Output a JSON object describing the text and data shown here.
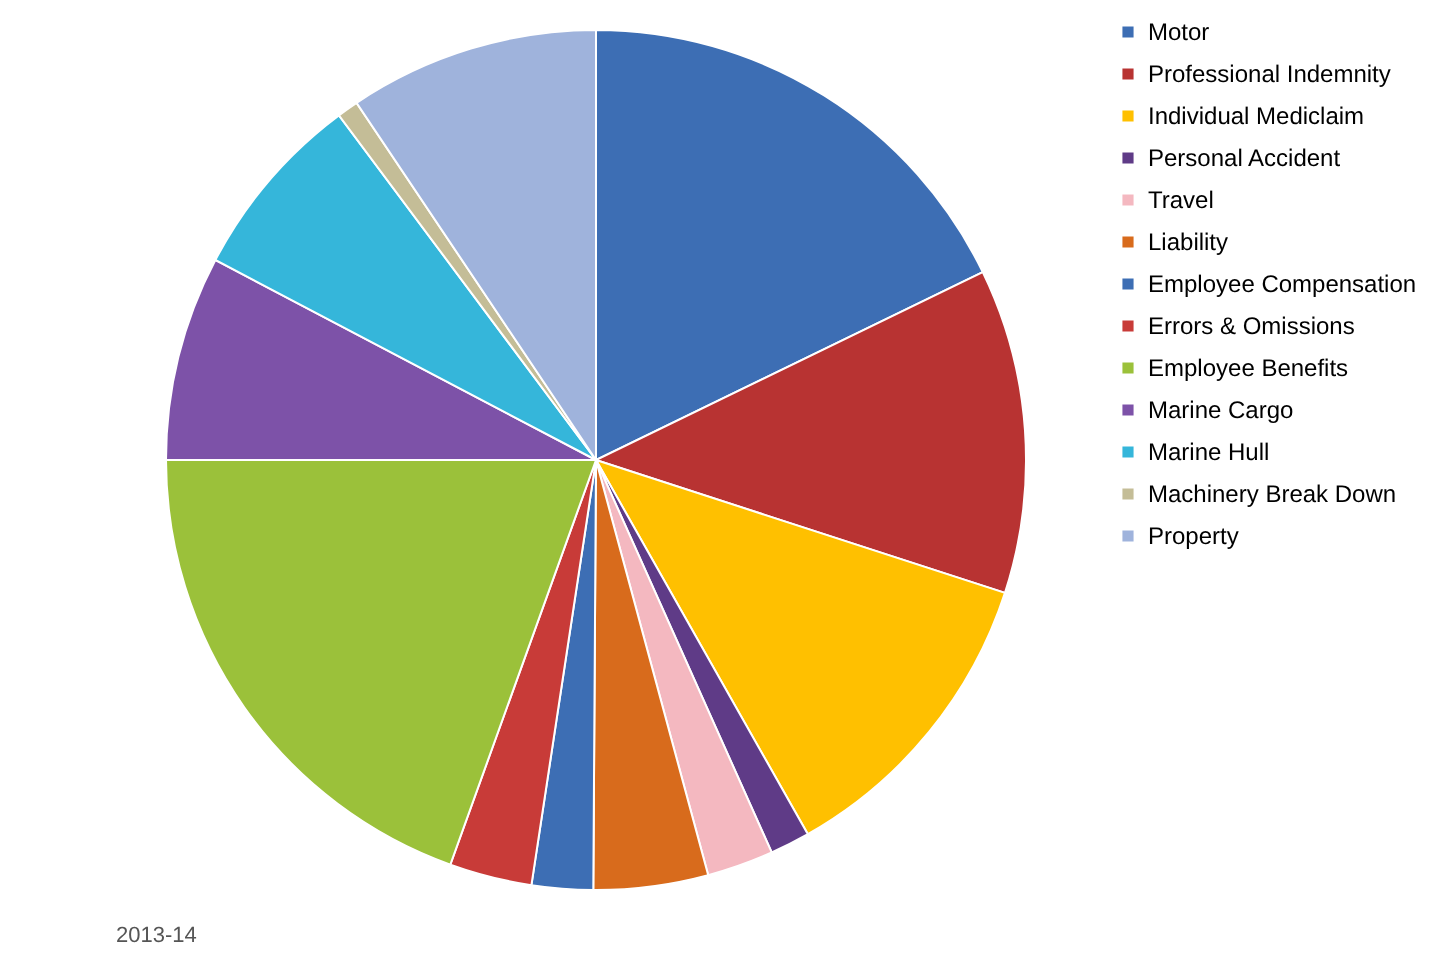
{
  "chart_data": {
    "type": "pie",
    "categories": [
      "Motor",
      "Professional Indemnity",
      "Individual Mediclaim",
      "Personal Accident",
      "Travel",
      "Liability",
      "Employee Compensation",
      "Errors & Omissions",
      "Employee Benefits",
      "Marine Cargo",
      "Marine Hull",
      "Machinery Break Down",
      "Property"
    ],
    "values": [
      17.8,
      12.2,
      11.8,
      1.5,
      2.5,
      4.3,
      2.3,
      3.1,
      19.5,
      7.7,
      7.1,
      0.8,
      9.4
    ],
    "colors": [
      "#3d6eb4",
      "#b83332",
      "#ffc000",
      "#5f3b87",
      "#f4b8c0",
      "#d86b1c",
      "#3d6eb4",
      "#c83b38",
      "#9bc13a",
      "#7d52a8",
      "#35b6da",
      "#c4bd97",
      "#9fb3dc"
    ],
    "legend": "right",
    "annotations": [
      "2013-14"
    ]
  }
}
